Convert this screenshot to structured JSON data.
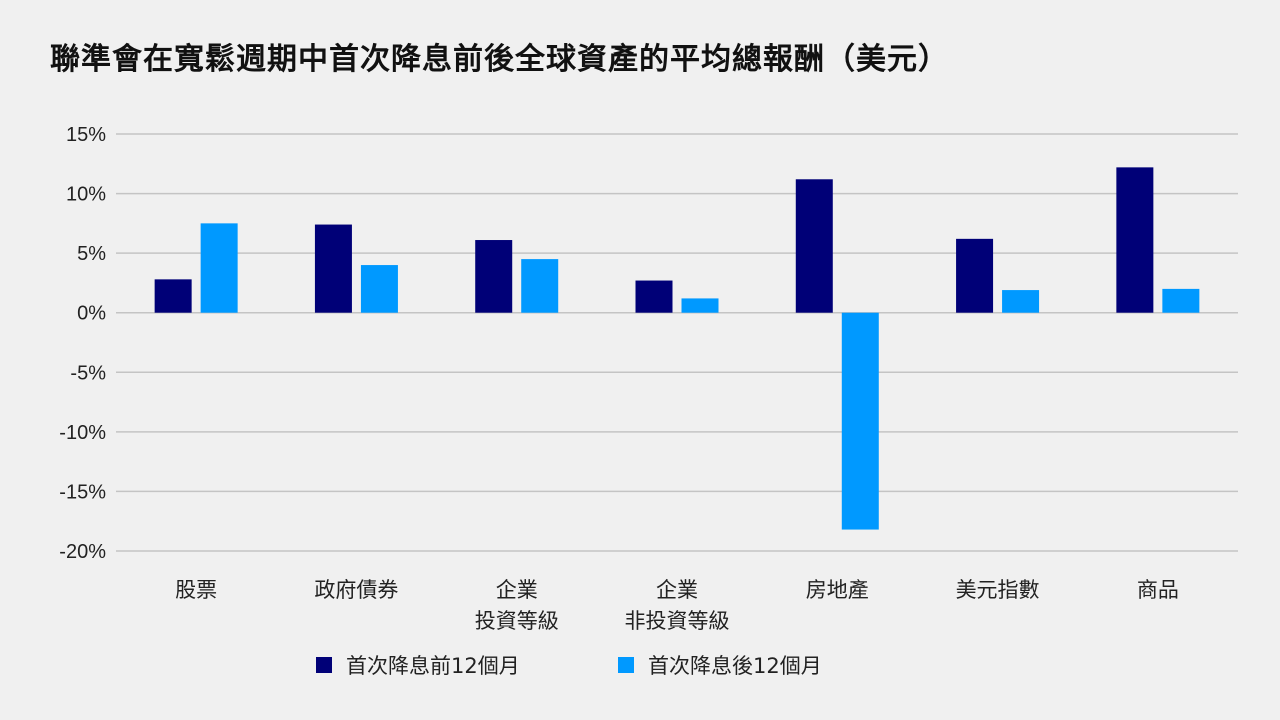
{
  "chart_data": {
    "type": "bar",
    "title": "聯準會在寬鬆週期中首次降息前後全球資產的平均總報酬（美元）",
    "categories": [
      [
        "股票"
      ],
      [
        "政府債券"
      ],
      [
        "企業",
        "投資等級"
      ],
      [
        "企業",
        "非投資等級"
      ],
      [
        "房地產"
      ],
      [
        "美元指數"
      ],
      [
        "商品"
      ]
    ],
    "series": [
      {
        "name": "首次降息前12個月",
        "color": "#000077",
        "values": [
          2.8,
          7.4,
          6.1,
          2.7,
          11.2,
          6.2,
          12.2
        ]
      },
      {
        "name": "首次降息後12個月",
        "color": "#0099ff",
        "values": [
          7.5,
          4.0,
          4.5,
          1.2,
          -18.2,
          1.9,
          2.0
        ]
      }
    ],
    "ylim": [
      -20,
      15
    ],
    "yticks": [
      15,
      10,
      5,
      0,
      -5,
      -10,
      -15,
      -20
    ],
    "ytick_labels": [
      "15%",
      "10%",
      "5%",
      "0%",
      "-5%",
      "-10%",
      "-15%",
      "-20%"
    ],
    "xlabel": "",
    "ylabel": "",
    "grid": true,
    "legend_position": "bottom"
  }
}
